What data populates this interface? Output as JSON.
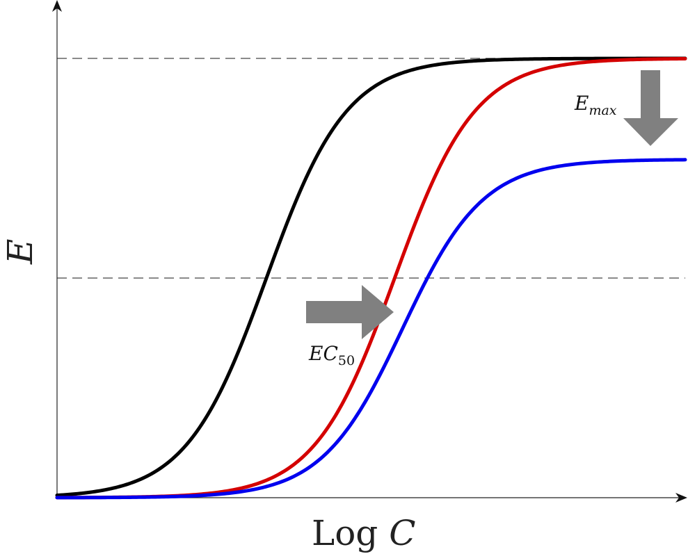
{
  "chart_data": {
    "type": "line",
    "xlabel": "Log C",
    "xlabel_parts": {
      "plain": "Log",
      "italic": "C"
    },
    "ylabel": "E",
    "xlim": [
      -6,
      6
    ],
    "ylim": [
      0,
      1
    ],
    "grid": false,
    "legend": "none",
    "reference_lines": [
      {
        "y": 1.0,
        "style": "dashed"
      },
      {
        "y": 0.5,
        "style": "dashed"
      }
    ],
    "series": [
      {
        "color": "#000000",
        "emax": 1.0,
        "ec50": -2.0,
        "hill": 1.3
      },
      {
        "color": "#d40000",
        "emax": 1.0,
        "ec50": 0.45,
        "hill": 1.3
      },
      {
        "color": "#0000ee",
        "emax": 0.77,
        "ec50": 0.6,
        "hill": 1.3
      }
    ],
    "annotations": [
      {
        "label_main": "EC",
        "label_sub": "50",
        "arrow": "right",
        "color": "#808080"
      },
      {
        "label_main": "E",
        "label_sub": "max",
        "arrow": "down",
        "color": "#808080"
      }
    ]
  }
}
